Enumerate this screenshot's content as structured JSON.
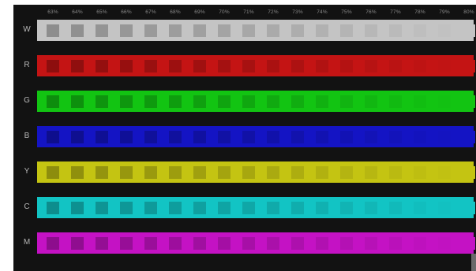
{
  "percent_labels": [
    "63%",
    "64%",
    "65%",
    "66%",
    "67%",
    "68%",
    "69%",
    "70%",
    "71%",
    "72%",
    "73%",
    "74%",
    "75%",
    "76%",
    "77%",
    "78%",
    "79%",
    "80%"
  ],
  "rows": [
    {
      "label": "W",
      "color": "#c4c4c4"
    },
    {
      "label": "R",
      "color": "#c41414"
    },
    {
      "label": "G",
      "color": "#12c412"
    },
    {
      "label": "B",
      "color": "#1414c4"
    },
    {
      "label": "Y",
      "color": "#c4c412"
    },
    {
      "label": "C",
      "color": "#12c4c4"
    },
    {
      "label": "M",
      "color": "#c412c4"
    }
  ],
  "background_color": "#121212"
}
